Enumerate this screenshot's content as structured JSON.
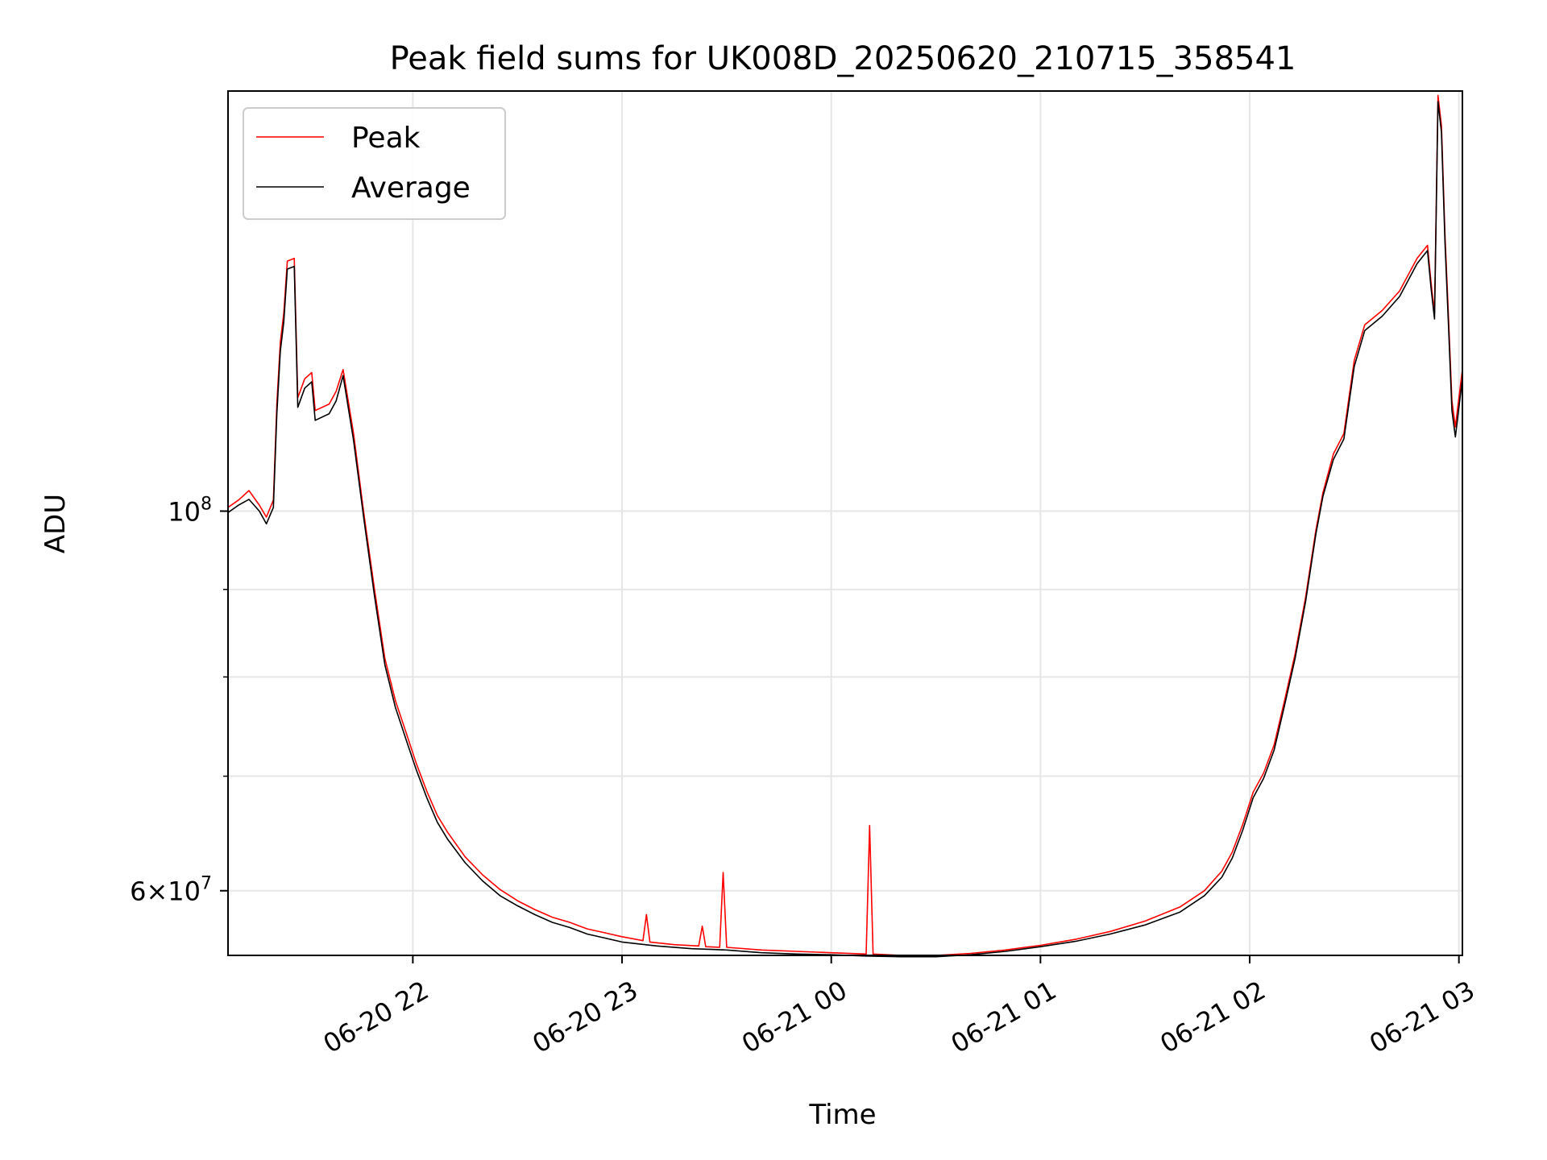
{
  "chart_data": {
    "type": "line",
    "title": "Peak field sums for UK008D_20250620_210715_358541",
    "xlabel": "Time",
    "ylabel": "ADU",
    "yscale": "log",
    "grid": true,
    "legend_position": "top-left",
    "xlim": [
      "2025-06-20 21:07",
      "2025-06-21 03:01"
    ],
    "ylim": [
      55000000,
      176000000
    ],
    "x_ticks": [
      {
        "value": "2025-06-20 22:00",
        "label": "06-20 22"
      },
      {
        "value": "2025-06-20 23:00",
        "label": "06-20 23"
      },
      {
        "value": "2025-06-21 00:00",
        "label": "06-21 00"
      },
      {
        "value": "2025-06-21 01:00",
        "label": "06-21 01"
      },
      {
        "value": "2025-06-21 02:00",
        "label": "06-21 02"
      },
      {
        "value": "2025-06-21 03:00",
        "label": "06-21 03"
      }
    ],
    "y_major_ticks": [
      {
        "value": 60000000,
        "label": "6×10⁷",
        "mantissa": "6",
        "base": "10",
        "exp": "7"
      },
      {
        "value": 100000000,
        "label": "10⁸",
        "mantissa": "",
        "base": "10",
        "exp": "8"
      }
    ],
    "y_minor_ticks": [
      70000000,
      80000000,
      90000000
    ],
    "series": [
      {
        "name": "Peak",
        "color": "#ff0000",
        "points": [
          [
            "2025-06-20 21:07",
            100500000
          ],
          [
            "2025-06-20 21:10",
            101500000
          ],
          [
            "2025-06-20 21:13",
            102800000
          ],
          [
            "2025-06-20 21:16",
            100800000
          ],
          [
            "2025-06-20 21:18",
            99200000
          ],
          [
            "2025-06-20 21:20",
            101500000
          ],
          [
            "2025-06-20 21:21",
            115500000
          ],
          [
            "2025-06-20 21:22",
            125500000
          ],
          [
            "2025-06-20 21:23",
            130500000
          ],
          [
            "2025-06-20 21:24",
            140000000
          ],
          [
            "2025-06-20 21:26",
            140500000
          ],
          [
            "2025-06-20 21:27",
            116500000
          ],
          [
            "2025-06-20 21:29",
            119500000
          ],
          [
            "2025-06-20 21:31",
            120500000
          ],
          [
            "2025-06-20 21:32",
            114500000
          ],
          [
            "2025-06-20 21:36",
            115500000
          ],
          [
            "2025-06-20 21:38",
            117500000
          ],
          [
            "2025-06-20 21:40",
            121000000
          ],
          [
            "2025-06-20 21:43",
            111000000
          ],
          [
            "2025-06-20 21:46",
            99500000
          ],
          [
            "2025-06-20 21:49",
            90000000
          ],
          [
            "2025-06-20 21:52",
            82000000
          ],
          [
            "2025-06-20 21:55",
            77500000
          ],
          [
            "2025-06-20 21:58",
            74300000
          ],
          [
            "2025-06-20 22:01",
            71200000
          ],
          [
            "2025-06-20 22:04",
            68600000
          ],
          [
            "2025-06-20 22:07",
            66400000
          ],
          [
            "2025-06-20 22:10",
            64900000
          ],
          [
            "2025-06-20 22:15",
            62800000
          ],
          [
            "2025-06-20 22:20",
            61300000
          ],
          [
            "2025-06-20 22:25",
            60100000
          ],
          [
            "2025-06-20 22:30",
            59200000
          ],
          [
            "2025-06-20 22:35",
            58500000
          ],
          [
            "2025-06-20 22:40",
            57900000
          ],
          [
            "2025-06-20 22:45",
            57500000
          ],
          [
            "2025-06-20 22:50",
            57000000
          ],
          [
            "2025-06-20 22:55",
            56700000
          ],
          [
            "2025-06-20 23:00",
            56400000
          ],
          [
            "2025-06-20 23:06",
            56100000
          ],
          [
            "2025-06-20 23:07",
            58100000
          ],
          [
            "2025-06-20 23:08",
            56000000
          ],
          [
            "2025-06-20 23:15",
            55800000
          ],
          [
            "2025-06-20 23:22",
            55700000
          ],
          [
            "2025-06-20 23:23",
            57200000
          ],
          [
            "2025-06-20 23:24",
            55650000
          ],
          [
            "2025-06-20 23:28",
            55600000
          ],
          [
            "2025-06-20 23:29",
            61500000
          ],
          [
            "2025-06-20 23:30",
            55600000
          ],
          [
            "2025-06-20 23:40",
            55400000
          ],
          [
            "2025-06-20 23:50",
            55300000
          ],
          [
            "2025-06-21 00:00",
            55200000
          ],
          [
            "2025-06-21 00:10",
            55100000
          ],
          [
            "2025-06-21 00:11",
            65500000
          ],
          [
            "2025-06-21 00:12",
            55100000
          ],
          [
            "2025-06-21 00:20",
            55000000
          ],
          [
            "2025-06-21 00:30",
            55000000
          ],
          [
            "2025-06-21 00:40",
            55150000
          ],
          [
            "2025-06-21 00:50",
            55400000
          ],
          [
            "2025-06-21 01:00",
            55750000
          ],
          [
            "2025-06-21 01:10",
            56200000
          ],
          [
            "2025-06-21 01:20",
            56800000
          ],
          [
            "2025-06-21 01:30",
            57600000
          ],
          [
            "2025-06-21 01:40",
            58700000
          ],
          [
            "2025-06-21 01:47",
            60000000
          ],
          [
            "2025-06-21 01:52",
            61600000
          ],
          [
            "2025-06-21 01:55",
            63200000
          ],
          [
            "2025-06-21 01:58",
            65600000
          ],
          [
            "2025-06-21 02:01",
            68500000
          ],
          [
            "2025-06-21 02:04",
            70300000
          ],
          [
            "2025-06-21 02:07",
            73000000
          ],
          [
            "2025-06-21 02:10",
            77500000
          ],
          [
            "2025-06-21 02:13",
            82500000
          ],
          [
            "2025-06-21 02:16",
            89000000
          ],
          [
            "2025-06-21 02:19",
            97500000
          ],
          [
            "2025-06-21 02:21",
            102500000
          ],
          [
            "2025-06-21 02:24",
            108000000
          ],
          [
            "2025-06-21 02:27",
            111000000
          ],
          [
            "2025-06-21 02:30",
            122500000
          ],
          [
            "2025-06-21 02:33",
            128500000
          ],
          [
            "2025-06-21 02:38",
            131000000
          ],
          [
            "2025-06-21 02:43",
            134500000
          ],
          [
            "2025-06-21 02:48",
            140500000
          ],
          [
            "2025-06-21 02:51",
            143000000
          ],
          [
            "2025-06-21 02:52",
            136000000
          ],
          [
            "2025-06-21 02:53",
            130500000
          ],
          [
            "2025-06-21 02:54",
            175000000
          ],
          [
            "2025-06-21 02:55",
            168000000
          ],
          [
            "2025-06-21 02:56",
            145000000
          ],
          [
            "2025-06-21 02:57",
            130000000
          ],
          [
            "2025-06-21 02:58",
            116000000
          ],
          [
            "2025-06-21 02:59",
            112000000
          ],
          [
            "2025-06-21 03:00",
            116500000
          ],
          [
            "2025-06-21 03:01",
            121000000
          ]
        ]
      },
      {
        "name": "Average",
        "color": "#000000",
        "points": [
          [
            "2025-06-20 21:07",
            99800000
          ],
          [
            "2025-06-20 21:10",
            100800000
          ],
          [
            "2025-06-20 21:13",
            101600000
          ],
          [
            "2025-06-20 21:16",
            100000000
          ],
          [
            "2025-06-20 21:18",
            98300000
          ],
          [
            "2025-06-20 21:20",
            100500000
          ],
          [
            "2025-06-20 21:21",
            114000000
          ],
          [
            "2025-06-20 21:22",
            124000000
          ],
          [
            "2025-06-20 21:23",
            129000000
          ],
          [
            "2025-06-20 21:24",
            138500000
          ],
          [
            "2025-06-20 21:26",
            139000000
          ],
          [
            "2025-06-20 21:27",
            115000000
          ],
          [
            "2025-06-20 21:29",
            118000000
          ],
          [
            "2025-06-20 21:31",
            119000000
          ],
          [
            "2025-06-20 21:32",
            113000000
          ],
          [
            "2025-06-20 21:36",
            114000000
          ],
          [
            "2025-06-20 21:38",
            116000000
          ],
          [
            "2025-06-20 21:40",
            120000000
          ],
          [
            "2025-06-20 21:43",
            110000000
          ],
          [
            "2025-06-20 21:46",
            98800000
          ],
          [
            "2025-06-20 21:49",
            89200000
          ],
          [
            "2025-06-20 21:52",
            81300000
          ],
          [
            "2025-06-20 21:55",
            76800000
          ],
          [
            "2025-06-20 21:58",
            73600000
          ],
          [
            "2025-06-20 22:01",
            70600000
          ],
          [
            "2025-06-20 22:04",
            68000000
          ],
          [
            "2025-06-20 22:07",
            65800000
          ],
          [
            "2025-06-20 22:10",
            64300000
          ],
          [
            "2025-06-20 22:15",
            62300000
          ],
          [
            "2025-06-20 22:20",
            60800000
          ],
          [
            "2025-06-20 22:25",
            59600000
          ],
          [
            "2025-06-20 22:30",
            58800000
          ],
          [
            "2025-06-20 22:35",
            58100000
          ],
          [
            "2025-06-20 22:40",
            57500000
          ],
          [
            "2025-06-20 22:45",
            57100000
          ],
          [
            "2025-06-20 22:50",
            56600000
          ],
          [
            "2025-06-20 22:55",
            56300000
          ],
          [
            "2025-06-20 23:00",
            56000000
          ],
          [
            "2025-06-20 23:10",
            55700000
          ],
          [
            "2025-06-20 23:20",
            55500000
          ],
          [
            "2025-06-20 23:30",
            55400000
          ],
          [
            "2025-06-20 23:40",
            55200000
          ],
          [
            "2025-06-20 23:50",
            55100000
          ],
          [
            "2025-06-21 00:00",
            55050000
          ],
          [
            "2025-06-21 00:10",
            54950000
          ],
          [
            "2025-06-21 00:20",
            54900000
          ],
          [
            "2025-06-21 00:30",
            54900000
          ],
          [
            "2025-06-21 00:40",
            55050000
          ],
          [
            "2025-06-21 00:50",
            55300000
          ],
          [
            "2025-06-21 01:00",
            55650000
          ],
          [
            "2025-06-21 01:10",
            56050000
          ],
          [
            "2025-06-21 01:20",
            56600000
          ],
          [
            "2025-06-21 01:30",
            57300000
          ],
          [
            "2025-06-21 01:40",
            58300000
          ],
          [
            "2025-06-21 01:47",
            59600000
          ],
          [
            "2025-06-21 01:52",
            61100000
          ],
          [
            "2025-06-21 01:55",
            62700000
          ],
          [
            "2025-06-21 01:58",
            65100000
          ],
          [
            "2025-06-21 02:01",
            68000000
          ],
          [
            "2025-06-21 02:04",
            69800000
          ],
          [
            "2025-06-21 02:07",
            72500000
          ],
          [
            "2025-06-21 02:10",
            77000000
          ],
          [
            "2025-06-21 02:13",
            82000000
          ],
          [
            "2025-06-21 02:16",
            88500000
          ],
          [
            "2025-06-21 02:19",
            97000000
          ],
          [
            "2025-06-21 02:21",
            102000000
          ],
          [
            "2025-06-21 02:24",
            107200000
          ],
          [
            "2025-06-21 02:27",
            110200000
          ],
          [
            "2025-06-21 02:30",
            121500000
          ],
          [
            "2025-06-21 02:33",
            127500000
          ],
          [
            "2025-06-21 02:38",
            130000000
          ],
          [
            "2025-06-21 02:43",
            133500000
          ],
          [
            "2025-06-21 02:48",
            139500000
          ],
          [
            "2025-06-21 02:51",
            142000000
          ],
          [
            "2025-06-21 02:52",
            135000000
          ],
          [
            "2025-06-21 02:53",
            129500000
          ],
          [
            "2025-06-21 02:54",
            173500000
          ],
          [
            "2025-06-21 02:55",
            166500000
          ],
          [
            "2025-06-21 02:56",
            143500000
          ],
          [
            "2025-06-21 02:57",
            128500000
          ],
          [
            "2025-06-21 02:58",
            114500000
          ],
          [
            "2025-06-21 02:59",
            110500000
          ],
          [
            "2025-06-21 03:00",
            115000000
          ],
          [
            "2025-06-21 03:01",
            119500000
          ]
        ]
      }
    ]
  }
}
